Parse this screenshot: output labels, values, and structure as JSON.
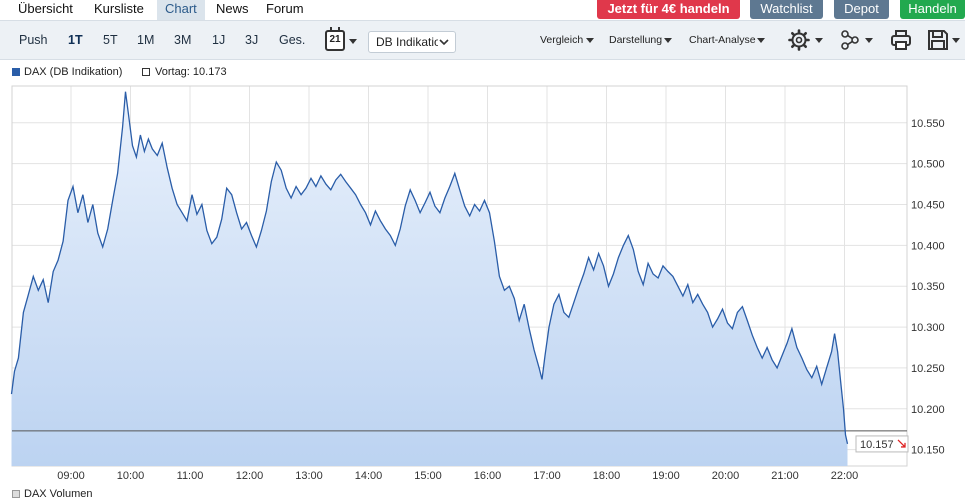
{
  "topnav": {
    "tabs": [
      "Übersicht",
      "Kursliste",
      "Chart",
      "News",
      "Forum"
    ],
    "active_tab": "Chart",
    "buttons": {
      "trade": {
        "label": "Jetzt für 4€ handeln",
        "color": "#e0384b"
      },
      "watchlist": {
        "label": "Watchlist",
        "color": "#5e7891"
      },
      "depot": {
        "label": "Depot",
        "color": "#5e7891"
      },
      "handeln": {
        "label": "Handeln",
        "color": "#22a94f"
      }
    }
  },
  "toolbar": {
    "ranges": [
      "Push",
      "1T",
      "5T",
      "1M",
      "3M",
      "1J",
      "3J",
      "Ges."
    ],
    "active_range": "1T",
    "calendar_day": "21",
    "exchange_select": "DB Indikation",
    "menus": [
      "Vergleich",
      "Darstellung",
      "Chart-Analyse"
    ],
    "icons": [
      "settings-icon",
      "share-icon",
      "print-icon",
      "save-icon"
    ]
  },
  "legend": {
    "series": "DAX (DB Indikation)",
    "prev_close": "Vortag: 10.173",
    "volume": "DAX Volumen"
  },
  "chart_data": {
    "type": "area",
    "series": [
      {
        "name": "DAX (DB Indikation)",
        "color": "#2a5da8"
      }
    ],
    "x_ticks": [
      "09:00",
      "10:00",
      "11:00",
      "12:00",
      "13:00",
      "14:00",
      "15:00",
      "16:00",
      "17:00",
      "18:00",
      "19:00",
      "20:00",
      "21:00",
      "22:00"
    ],
    "y_ticks": [
      "10.550",
      "10.500",
      "10.450",
      "10.400",
      "10.350",
      "10.300",
      "10.250",
      "10.200",
      "10.150"
    ],
    "ylim": [
      10130,
      10595
    ],
    "prev_close": 10173,
    "last_value": "10.157",
    "last_direction": "down",
    "points": [
      [
        "08:00",
        10218
      ],
      [
        "08:03",
        10246
      ],
      [
        "08:07",
        10262
      ],
      [
        "08:12",
        10318
      ],
      [
        "08:17",
        10340
      ],
      [
        "08:22",
        10362
      ],
      [
        "08:27",
        10345
      ],
      [
        "08:32",
        10358
      ],
      [
        "08:37",
        10330
      ],
      [
        "08:42",
        10368
      ],
      [
        "08:47",
        10382
      ],
      [
        "08:52",
        10405
      ],
      [
        "08:57",
        10455
      ],
      [
        "09:02",
        10472
      ],
      [
        "09:07",
        10440
      ],
      [
        "09:12",
        10462
      ],
      [
        "09:17",
        10428
      ],
      [
        "09:22",
        10450
      ],
      [
        "09:27",
        10415
      ],
      [
        "09:32",
        10398
      ],
      [
        "09:37",
        10420
      ],
      [
        "09:42",
        10455
      ],
      [
        "09:47",
        10488
      ],
      [
        "09:52",
        10545
      ],
      [
        "09:55",
        10588
      ],
      [
        "09:58",
        10560
      ],
      [
        "10:02",
        10522
      ],
      [
        "10:06",
        10508
      ],
      [
        "10:10",
        10535
      ],
      [
        "10:14",
        10515
      ],
      [
        "10:18",
        10530
      ],
      [
        "10:22",
        10518
      ],
      [
        "10:27",
        10510
      ],
      [
        "10:32",
        10525
      ],
      [
        "10:37",
        10495
      ],
      [
        "10:42",
        10470
      ],
      [
        "10:47",
        10450
      ],
      [
        "10:52",
        10440
      ],
      [
        "10:57",
        10430
      ],
      [
        "11:02",
        10462
      ],
      [
        "11:07",
        10438
      ],
      [
        "11:12",
        10450
      ],
      [
        "11:17",
        10418
      ],
      [
        "11:22",
        10402
      ],
      [
        "11:27",
        10410
      ],
      [
        "11:32",
        10432
      ],
      [
        "11:37",
        10470
      ],
      [
        "11:42",
        10462
      ],
      [
        "11:47",
        10440
      ],
      [
        "11:52",
        10420
      ],
      [
        "11:57",
        10428
      ],
      [
        "12:02",
        10412
      ],
      [
        "12:07",
        10398
      ],
      [
        "12:12",
        10418
      ],
      [
        "12:17",
        10442
      ],
      [
        "12:22",
        10478
      ],
      [
        "12:27",
        10502
      ],
      [
        "12:32",
        10492
      ],
      [
        "12:37",
        10470
      ],
      [
        "12:42",
        10458
      ],
      [
        "12:47",
        10472
      ],
      [
        "12:52",
        10462
      ],
      [
        "12:57",
        10470
      ],
      [
        "13:02",
        10482
      ],
      [
        "13:07",
        10472
      ],
      [
        "13:12",
        10485
      ],
      [
        "13:17",
        10475
      ],
      [
        "13:22",
        10468
      ],
      [
        "13:27",
        10480
      ],
      [
        "13:32",
        10487
      ],
      [
        "13:37",
        10478
      ],
      [
        "13:42",
        10470
      ],
      [
        "13:47",
        10462
      ],
      [
        "13:52",
        10450
      ],
      [
        "13:57",
        10440
      ],
      [
        "14:02",
        10425
      ],
      [
        "14:07",
        10442
      ],
      [
        "14:12",
        10430
      ],
      [
        "14:17",
        10420
      ],
      [
        "14:22",
        10412
      ],
      [
        "14:27",
        10400
      ],
      [
        "14:32",
        10420
      ],
      [
        "14:37",
        10448
      ],
      [
        "14:42",
        10468
      ],
      [
        "14:47",
        10455
      ],
      [
        "14:52",
        10440
      ],
      [
        "14:57",
        10452
      ],
      [
        "15:02",
        10465
      ],
      [
        "15:07",
        10448
      ],
      [
        "15:12",
        10440
      ],
      [
        "15:17",
        10458
      ],
      [
        "15:22",
        10472
      ],
      [
        "15:27",
        10488
      ],
      [
        "15:32",
        10468
      ],
      [
        "15:37",
        10448
      ],
      [
        "15:42",
        10436
      ],
      [
        "15:47",
        10450
      ],
      [
        "15:52",
        10442
      ],
      [
        "15:57",
        10455
      ],
      [
        "16:02",
        10440
      ],
      [
        "16:07",
        10405
      ],
      [
        "16:12",
        10362
      ],
      [
        "16:17",
        10345
      ],
      [
        "16:22",
        10350
      ],
      [
        "16:27",
        10335
      ],
      [
        "16:32",
        10308
      ],
      [
        "16:37",
        10328
      ],
      [
        "16:42",
        10298
      ],
      [
        "16:47",
        10272
      ],
      [
        "16:52",
        10250
      ],
      [
        "16:55",
        10236
      ],
      [
        "16:58",
        10265
      ],
      [
        "17:02",
        10300
      ],
      [
        "17:07",
        10328
      ],
      [
        "17:12",
        10340
      ],
      [
        "17:17",
        10318
      ],
      [
        "17:22",
        10312
      ],
      [
        "17:27",
        10330
      ],
      [
        "17:32",
        10348
      ],
      [
        "17:37",
        10365
      ],
      [
        "17:42",
        10385
      ],
      [
        "17:47",
        10370
      ],
      [
        "17:52",
        10390
      ],
      [
        "17:57",
        10375
      ],
      [
        "18:02",
        10350
      ],
      [
        "18:07",
        10365
      ],
      [
        "18:12",
        10385
      ],
      [
        "18:17",
        10400
      ],
      [
        "18:22",
        10412
      ],
      [
        "18:27",
        10395
      ],
      [
        "18:32",
        10368
      ],
      [
        "18:37",
        10352
      ],
      [
        "18:42",
        10378
      ],
      [
        "18:47",
        10365
      ],
      [
        "18:52",
        10360
      ],
      [
        "18:57",
        10375
      ],
      [
        "19:02",
        10368
      ],
      [
        "19:07",
        10362
      ],
      [
        "19:12",
        10350
      ],
      [
        "19:17",
        10338
      ],
      [
        "19:22",
        10352
      ],
      [
        "19:27",
        10330
      ],
      [
        "19:32",
        10340
      ],
      [
        "19:37",
        10328
      ],
      [
        "19:42",
        10318
      ],
      [
        "19:47",
        10300
      ],
      [
        "19:52",
        10310
      ],
      [
        "19:57",
        10322
      ],
      [
        "20:02",
        10305
      ],
      [
        "20:07",
        10298
      ],
      [
        "20:12",
        10318
      ],
      [
        "20:17",
        10325
      ],
      [
        "20:22",
        10308
      ],
      [
        "20:27",
        10290
      ],
      [
        "20:32",
        10275
      ],
      [
        "20:37",
        10262
      ],
      [
        "20:42",
        10275
      ],
      [
        "20:47",
        10260
      ],
      [
        "20:52",
        10250
      ],
      [
        "20:57",
        10265
      ],
      [
        "21:02",
        10280
      ],
      [
        "21:07",
        10298
      ],
      [
        "21:12",
        10275
      ],
      [
        "21:17",
        10262
      ],
      [
        "21:22",
        10248
      ],
      [
        "21:27",
        10238
      ],
      [
        "21:32",
        10252
      ],
      [
        "21:37",
        10230
      ],
      [
        "21:42",
        10250
      ],
      [
        "21:47",
        10270
      ],
      [
        "21:50",
        10292
      ],
      [
        "21:53",
        10270
      ],
      [
        "21:56",
        10235
      ],
      [
        "21:59",
        10200
      ],
      [
        "22:01",
        10168
      ],
      [
        "22:03",
        10157
      ]
    ]
  }
}
